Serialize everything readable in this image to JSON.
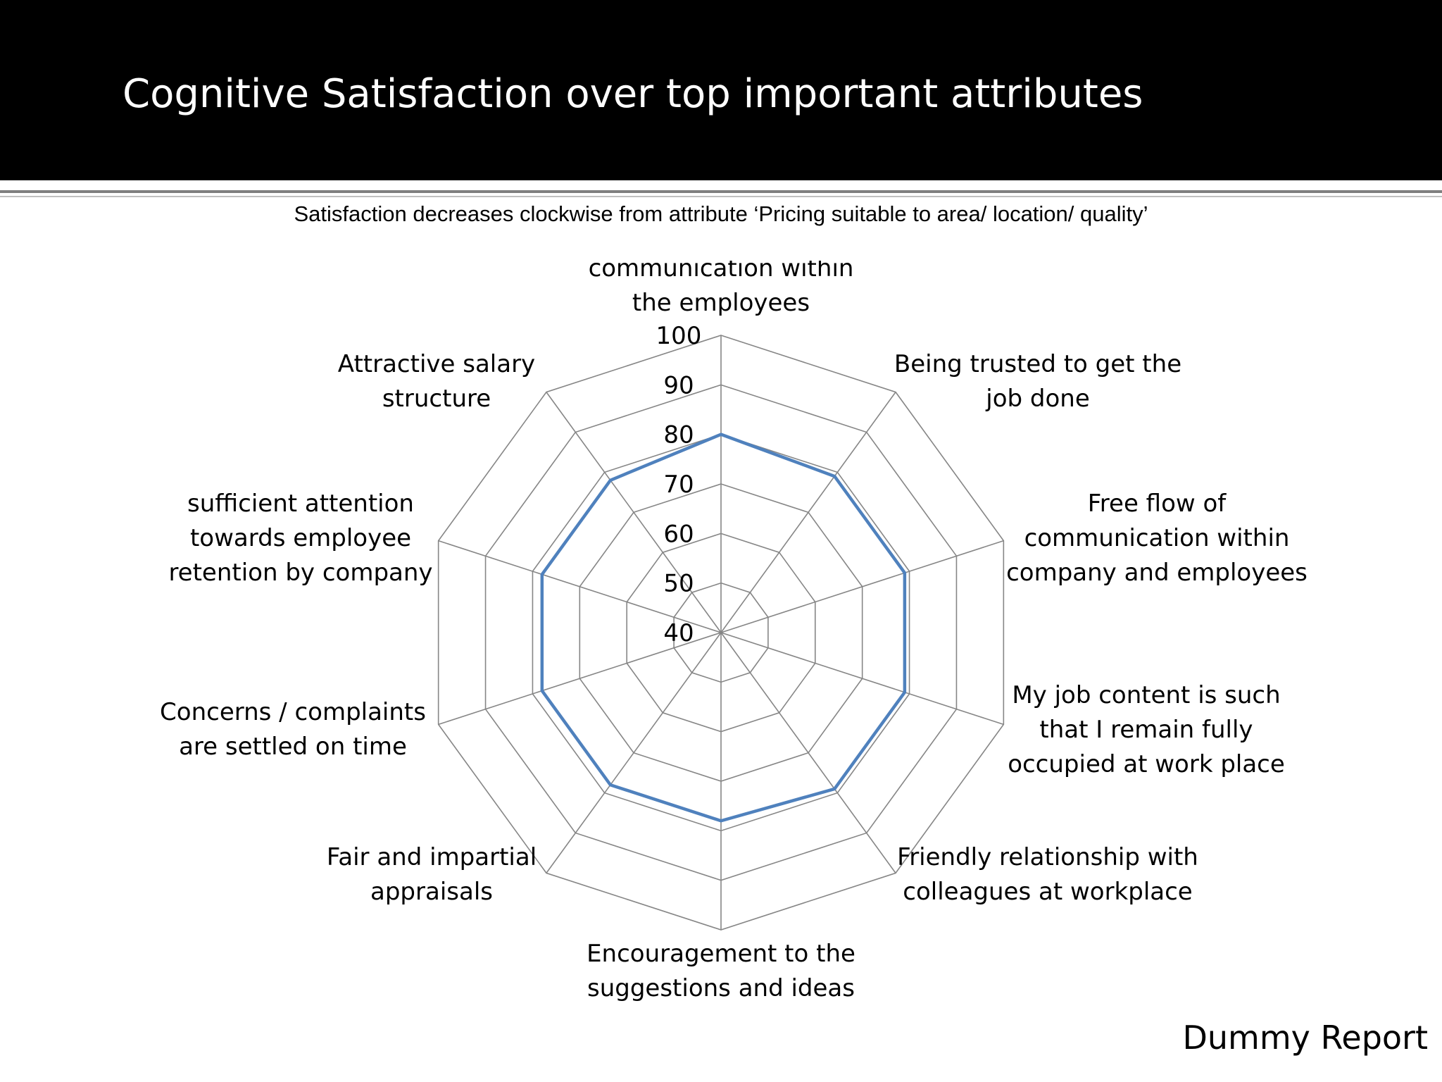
{
  "slide": {
    "title": "Cognitive Satisfaction over top important attributes",
    "subtitle": "Satisfaction decreases clockwise from attribute ‘Pricing suitable to area/ location/ quality’",
    "footer": "Dummy Report"
  },
  "chart_data": {
    "type": "radar",
    "title": "",
    "categories": [
      [
        "communication within",
        "the employees"
      ],
      [
        "Being trusted to get the",
        "job done"
      ],
      [
        "Free flow of",
        "communication within",
        "company and employees"
      ],
      [
        "My job content is such",
        "that I remain fully",
        "occupied at work place"
      ],
      [
        "Friendly relationship with",
        "colleagues at workplace"
      ],
      [
        "Encouragement to the",
        "suggestions and ideas"
      ],
      [
        "Fair and impartial",
        "appraisals"
      ],
      [
        "Concerns / complaints",
        "are settled on time"
      ],
      [
        "sufficient attention",
        "towards employee",
        "retention by company"
      ],
      [
        "Attractive salary",
        "structure"
      ]
    ],
    "series": [
      {
        "values": [
          80,
          79,
          79,
          79,
          79,
          78,
          78,
          78,
          78,
          78
        ]
      }
    ],
    "rlim": [
      40,
      100
    ],
    "ticks": [
      40,
      50,
      60,
      70,
      80,
      90,
      100
    ],
    "grid": true,
    "legend": "none",
    "colors": {
      "series": "#4f81bd",
      "grid": "#868686"
    }
  }
}
